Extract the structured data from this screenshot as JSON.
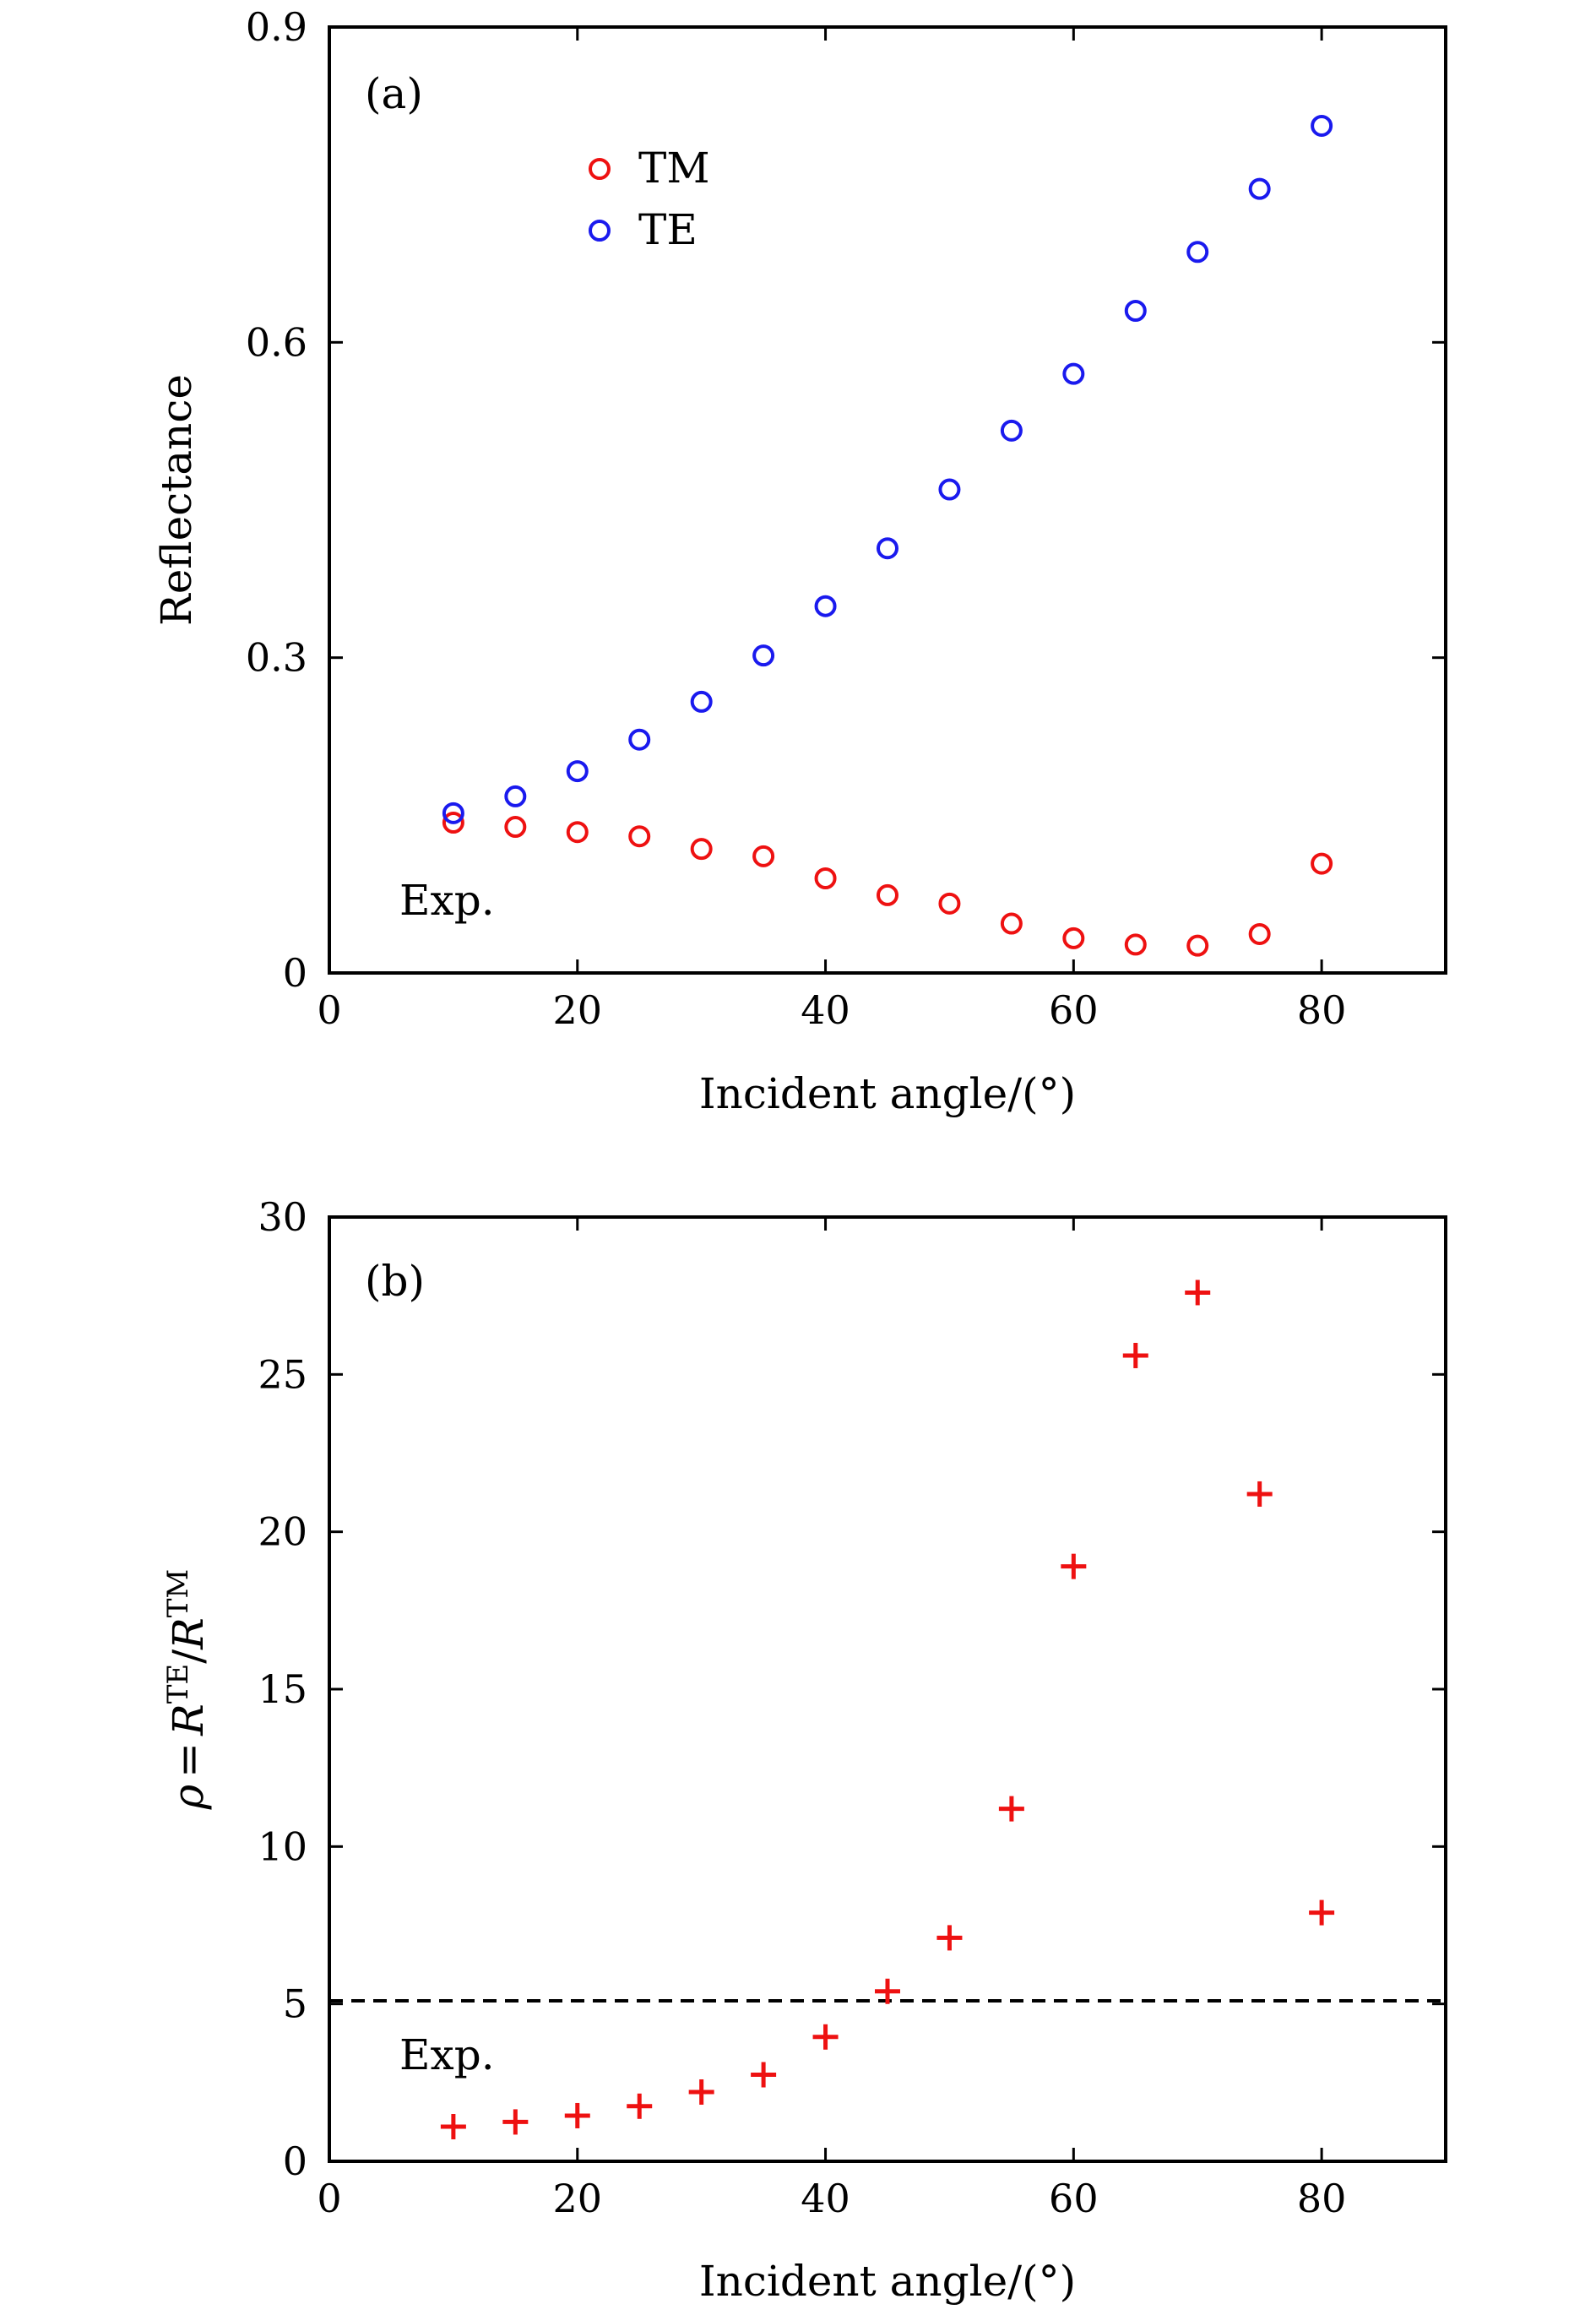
{
  "chart_data": [
    {
      "type": "scatter",
      "panel_label": "(a)",
      "xlabel": "Incident angle/(°)",
      "ylabel": "Reflectance",
      "xlim": [
        0,
        90
      ],
      "ylim": [
        0,
        0.9
      ],
      "xticks": [
        0,
        20,
        40,
        60,
        80
      ],
      "yticks": [
        0,
        0.3,
        0.6,
        0.9
      ],
      "xtick_labels": [
        "0",
        "20",
        "40",
        "60",
        "80"
      ],
      "ytick_labels": [
        "0",
        "0.3",
        "0.6",
        "0.9"
      ],
      "annotation": "Exp.",
      "annotation_color": "#8b2a8b",
      "legend_position": "top-left",
      "series": [
        {
          "name": "TM",
          "color": "#ee1111",
          "marker": "circle",
          "x": [
            10,
            15,
            20,
            25,
            30,
            35,
            40,
            45,
            50,
            55,
            60,
            65,
            70,
            75,
            80
          ],
          "y": [
            0.143,
            0.139,
            0.134,
            0.13,
            0.118,
            0.111,
            0.09,
            0.074,
            0.066,
            0.047,
            0.033,
            0.027,
            0.026,
            0.037,
            0.104
          ]
        },
        {
          "name": "TE",
          "color": "#1a1aee",
          "marker": "circle",
          "x": [
            10,
            15,
            20,
            25,
            30,
            35,
            40,
            45,
            50,
            55,
            60,
            65,
            70,
            75,
            80
          ],
          "y": [
            0.152,
            0.168,
            0.192,
            0.222,
            0.258,
            0.302,
            0.349,
            0.404,
            0.46,
            0.516,
            0.57,
            0.63,
            0.686,
            0.746,
            0.806
          ]
        }
      ]
    },
    {
      "type": "scatter",
      "panel_label": "(b)",
      "xlabel": "Incident angle/(°)",
      "ylabel": "ρ = R^TE / R^TM",
      "ylabel_parts": {
        "rho": "ρ",
        "eq": "=",
        "r": "R",
        "te": "TE",
        "slash": "/",
        "tm": "TM"
      },
      "xlim": [
        0,
        90
      ],
      "ylim": [
        0,
        30
      ],
      "xticks": [
        0,
        20,
        40,
        60,
        80
      ],
      "yticks": [
        0,
        5,
        10,
        15,
        20,
        25,
        30
      ],
      "xtick_labels": [
        "0",
        "20",
        "40",
        "60",
        "80"
      ],
      "ytick_labels": [
        "0",
        "5",
        "10",
        "15",
        "20",
        "25",
        "30"
      ],
      "annotation": "Exp.",
      "annotation_color": "#8b2a8b",
      "reference_line": {
        "y": 5.1,
        "style": "dashed",
        "color": "#000000"
      },
      "series": [
        {
          "name": "ρ",
          "color": "#ee1111",
          "marker": "plus",
          "x": [
            10,
            15,
            20,
            25,
            30,
            35,
            40,
            45,
            50,
            55,
            60,
            65,
            70,
            75,
            80
          ],
          "y": [
            1.1,
            1.25,
            1.45,
            1.75,
            2.2,
            2.75,
            3.95,
            5.4,
            7.1,
            11.2,
            18.9,
            25.6,
            27.6,
            21.2,
            7.9
          ]
        }
      ]
    }
  ]
}
